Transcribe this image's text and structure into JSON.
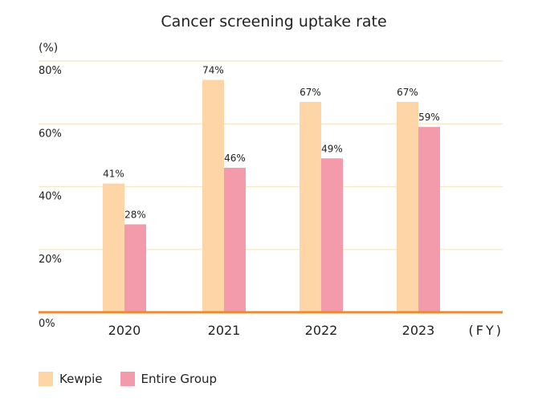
{
  "chart_data": {
    "type": "bar",
    "title": "Cancer screening uptake rate",
    "ylabel": "(%)",
    "xlabel": "(FY)",
    "categories": [
      "2020",
      "2021",
      "2022",
      "2023"
    ],
    "series": [
      {
        "name": "Kewpie",
        "values": [
          41,
          74,
          67,
          67
        ],
        "labels": [
          "41%",
          "74%",
          "67%",
          "67%"
        ],
        "color": "#fdd5a6"
      },
      {
        "name": "Entire Group",
        "values": [
          28,
          46,
          49,
          59
        ],
        "labels": [
          "28%",
          "46%",
          "49%",
          "59%"
        ],
        "color": "#f39aab"
      }
    ],
    "yticks": [
      "0%",
      "20%",
      "40%",
      "60%",
      "80%"
    ],
    "ytick_values": [
      0,
      20,
      40,
      60,
      80
    ],
    "ylim": [
      0,
      80
    ],
    "grid": true,
    "legend_position": "bottom-left",
    "colors": {
      "grid": "#f7e7c6",
      "baseline": "#ef8a2a",
      "text": "#222222"
    }
  }
}
